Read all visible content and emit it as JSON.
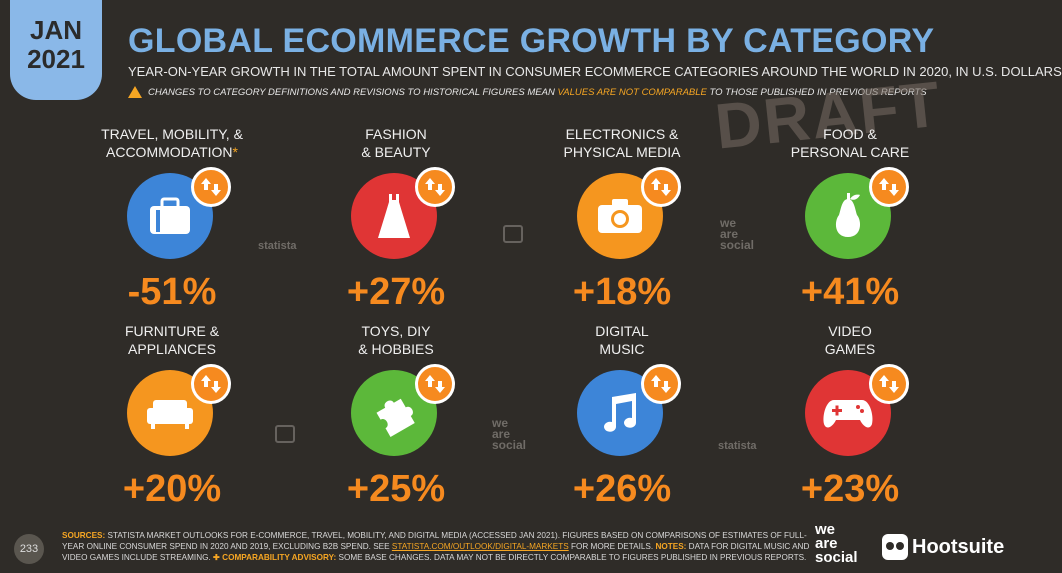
{
  "header": {
    "month": "JAN",
    "year": "2021",
    "title": "GLOBAL ECOMMERCE GROWTH BY CATEGORY",
    "subtitle": "YEAR-ON-YEAR GROWTH IN THE TOTAL AMOUNT SPENT IN CONSUMER ECOMMERCE CATEGORIES AROUND THE WORLD IN 2020, IN U.S. DOLLARS",
    "advisory_pre": "CHANGES TO CATEGORY DEFINITIONS AND REVISIONS TO HISTORICAL FIGURES MEAN",
    "advisory_hl": "VALUES ARE NOT COMPARABLE",
    "advisory_post": "TO THOSE PUBLISHED IN PREVIOUS REPORTS",
    "draft": "DRAFT"
  },
  "categories": [
    {
      "line1": "TRAVEL, MOBILITY, &",
      "line2": "ACCOMMODATION",
      "star": "*",
      "value": "-51%",
      "color": "#3d85d8",
      "icon": "suitcase-icon"
    },
    {
      "line1": "FASHION",
      "line2": "& BEAUTY",
      "star": "",
      "value": "+27%",
      "color": "#e03535",
      "icon": "dress-icon"
    },
    {
      "line1": "ELECTRONICS &",
      "line2": "PHYSICAL MEDIA",
      "star": "",
      "value": "+18%",
      "color": "#f5961f",
      "icon": "camera-icon"
    },
    {
      "line1": "FOOD &",
      "line2": "PERSONAL CARE",
      "star": "",
      "value": "+41%",
      "color": "#5cb83a",
      "icon": "pear-icon"
    },
    {
      "line1": "FURNITURE &",
      "line2": "APPLIANCES",
      "star": "",
      "value": "+20%",
      "color": "#f5961f",
      "icon": "sofa-icon"
    },
    {
      "line1": "TOYS, DIY",
      "line2": "& HOBBIES",
      "star": "",
      "value": "+25%",
      "color": "#5cb83a",
      "icon": "puzzle-icon"
    },
    {
      "line1": "DIGITAL",
      "line2": "MUSIC",
      "star": "",
      "value": "+26%",
      "color": "#3d85d8",
      "icon": "music-note-icon"
    },
    {
      "line1": "VIDEO",
      "line2": "GAMES",
      "star": "",
      "value": "+23%",
      "color": "#e03535",
      "icon": "gamepad-icon"
    }
  ],
  "watermarks": {
    "statista": "statista",
    "we": "we",
    "are": "are",
    "social": "social"
  },
  "footer": {
    "page": "233",
    "sources_label": "SOURCES:",
    "sources_text": "STATISTA MARKET OUTLOOKS FOR E-COMMERCE, TRAVEL, MOBILITY, AND DIGITAL MEDIA (ACCESSED JAN 2021). FIGURES BASED ON COMPARISONS OF ESTIMATES OF FULL-YEAR ONLINE CONSUMER SPEND IN 2020 AND 2019, EXCLUDING B2B SPEND. SEE",
    "link": "STATISTA.COM/OUTLOOK/DIGITAL-MARKETS",
    "more": "FOR MORE DETAILS.",
    "notes_label": "NOTES:",
    "notes_text": "DATA FOR DIGITAL MUSIC AND VIDEO GAMES INCLUDE STREAMING.",
    "comp_label": "✚ COMPARABILITY ADVISORY:",
    "comp_text": "SOME BASE CHANGES. DATA MAY NOT BE DIRECTLY COMPARABLE TO FIGURES PUBLISHED IN PREVIOUS REPORTS.",
    "brand_we": "we",
    "brand_are": "are",
    "brand_social": "social",
    "brand_hootsuite": "Hootsuite"
  }
}
